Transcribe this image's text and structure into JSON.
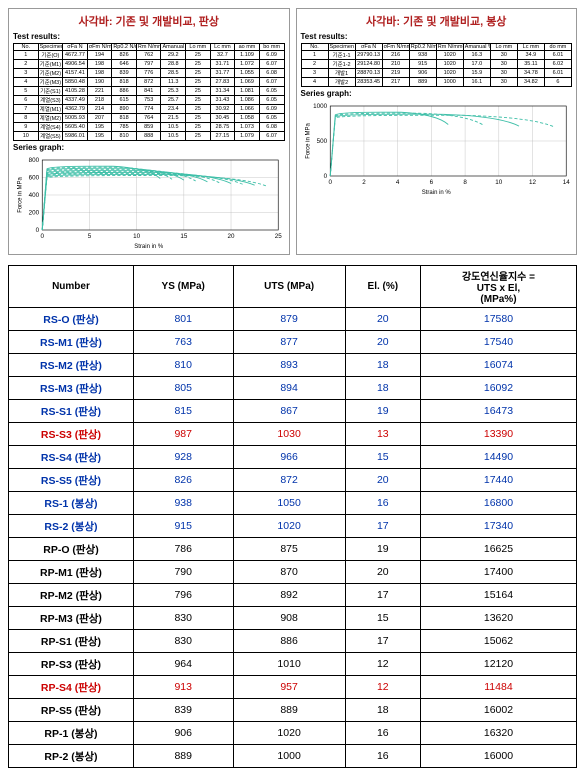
{
  "panels": {
    "left": {
      "title": "사각바: 기존 및 개발비교, 판상",
      "test_label": "Test results:",
      "series_label": "Series graph:",
      "mini_headers": [
        "No.",
        "Specimen ID",
        "σFa N",
        "σFm N/mm²",
        "Rp0.2 N/mm²",
        "Rm N/mm²",
        "Amanual %",
        "Lo mm",
        "Lc mm",
        "ao mm",
        "bo mm"
      ],
      "mini_rows": [
        [
          "1",
          "기준(O)",
          "4672.77",
          "194",
          "826",
          "762",
          "29.2",
          "25",
          "32.7",
          "1.109",
          "6.09"
        ],
        [
          "2",
          "기준(M1)",
          "4906.54",
          "198",
          "646",
          "797",
          "28.8",
          "25",
          "31.71",
          "1.072",
          "6.07"
        ],
        [
          "3",
          "기준(M2)",
          "4157.41",
          "198",
          "839",
          "776",
          "28.5",
          "25",
          "31.77",
          "1.055",
          "6.08"
        ],
        [
          "4",
          "기준(M3)",
          "5850.48",
          "190",
          "818",
          "872",
          "11.3",
          "25",
          "27.83",
          "1.069",
          "6.07"
        ],
        [
          "5",
          "기준(S1)",
          "4105.28",
          "221",
          "886",
          "841",
          "25.3",
          "25",
          "31.34",
          "1.081",
          "6.05"
        ],
        [
          "6",
          "계열(S3)",
          "4337.49",
          "218",
          "615",
          "753",
          "25.7",
          "25",
          "31.43",
          "1.086",
          "6.05"
        ],
        [
          "7",
          "계열(M1)",
          "4362.79",
          "214",
          "890",
          "774",
          "23.4",
          "25",
          "30.92",
          "1.066",
          "6.09"
        ],
        [
          "8",
          "계열(M2)",
          "5005.93",
          "207",
          "818",
          "764",
          "21.5",
          "25",
          "30.45",
          "1.058",
          "6.05"
        ],
        [
          "9",
          "계열(S4)",
          "5605.40",
          "195",
          "785",
          "859",
          "10.5",
          "25",
          "28.75",
          "1.073",
          "6.08"
        ],
        [
          "10",
          "계열(S5)",
          "5986.01",
          "195",
          "810",
          "888",
          "10.5",
          "25",
          "27.15",
          "1.079",
          "6.07"
        ]
      ],
      "chart": {
        "xlim": [
          0,
          25
        ],
        "ylim": [
          0,
          800
        ],
        "ytick_step": 200,
        "xtick_step": 5,
        "curves_color": "#3fbfa8",
        "grid_color": "#bbbbbb",
        "ylabel": "Force in MPa",
        "xlabel": "Strain in %"
      }
    },
    "right": {
      "title": "사각바: 기존 및 개발비교, 봉상",
      "test_label": "Test results:",
      "series_label": "Series graph:",
      "mini_headers": [
        "No.",
        "Specimen ID",
        "σFa N",
        "σFm N/mm²",
        "Rp0.2 N/mm²",
        "Rm N/mm²",
        "Amanual %",
        "Lo mm",
        "Lc mm",
        "do mm"
      ],
      "mini_rows": [
        [
          "1",
          "기준1-1",
          "29790.13",
          "216",
          "938",
          "1020",
          "16.3",
          "30",
          "34.9",
          "6.01"
        ],
        [
          "2",
          "기준1-2",
          "29124.80",
          "210",
          "915",
          "1020",
          "17.0",
          "30",
          "35.11",
          "6.02"
        ],
        [
          "3",
          "개발1",
          "28870.13",
          "219",
          "906",
          "1020",
          "15.9",
          "30",
          "34.78",
          "6.01"
        ],
        [
          "4",
          "개발2",
          "28353.45",
          "217",
          "889",
          "1000",
          "16.1",
          "30",
          "34.82",
          "6"
        ]
      ],
      "chart": {
        "xlim": [
          0,
          14
        ],
        "ylim": [
          0,
          1000
        ],
        "ytick_step": 500,
        "xtick_step": 2,
        "curves_color": "#3fbfa8",
        "grid_color": "#bbbbbb",
        "ylabel": "Force in MPa",
        "xlabel": "Strain in %"
      }
    }
  },
  "main_table": {
    "headers": [
      "Number",
      "YS (MPa)",
      "UTS (MPa)",
      "El. (%)",
      "강도연신율지수 =\nUTS x El,\n(MPa%)"
    ],
    "rows": [
      {
        "label": "RS-O (판상)",
        "ys": "801",
        "uts": "879",
        "el": "20",
        "idx": "17580",
        "group": "rs"
      },
      {
        "label": "RS-M1 (판상)",
        "ys": "763",
        "uts": "877",
        "el": "20",
        "idx": "17540",
        "group": "rs"
      },
      {
        "label": "RS-M2 (판상)",
        "ys": "810",
        "uts": "893",
        "el": "18",
        "idx": "16074",
        "group": "rs"
      },
      {
        "label": "RS-M3 (판상)",
        "ys": "805",
        "uts": "894",
        "el": "18",
        "idx": "16092",
        "group": "rs"
      },
      {
        "label": "RS-S1 (판상)",
        "ys": "815",
        "uts": "867",
        "el": "19",
        "idx": "16473",
        "group": "rs"
      },
      {
        "label": "RS-S3 (판상)",
        "ys": "987",
        "uts": "1030",
        "el": "13",
        "idx": "13390",
        "group": "rs",
        "red": true
      },
      {
        "label": "RS-S4 (판상)",
        "ys": "928",
        "uts": "966",
        "el": "15",
        "idx": "14490",
        "group": "rs"
      },
      {
        "label": "RS-S5 (판상)",
        "ys": "826",
        "uts": "872",
        "el": "20",
        "idx": "17440",
        "group": "rs"
      },
      {
        "label": "RS-1 (봉상)",
        "ys": "938",
        "uts": "1050",
        "el": "16",
        "idx": "16800",
        "group": "rs"
      },
      {
        "label": "RS-2 (봉상)",
        "ys": "915",
        "uts": "1020",
        "el": "17",
        "idx": "17340",
        "group": "rs"
      },
      {
        "label": "RP-O (판상)",
        "ys": "786",
        "uts": "875",
        "el": "19",
        "idx": "16625",
        "group": "rp"
      },
      {
        "label": "RP-M1 (판상)",
        "ys": "790",
        "uts": "870",
        "el": "20",
        "idx": "17400",
        "group": "rp"
      },
      {
        "label": "RP-M2 (판상)",
        "ys": "796",
        "uts": "892",
        "el": "17",
        "idx": "15164",
        "group": "rp"
      },
      {
        "label": "RP-M3 (판상)",
        "ys": "830",
        "uts": "908",
        "el": "15",
        "idx": "13620",
        "group": "rp"
      },
      {
        "label": "RP-S1 (판상)",
        "ys": "830",
        "uts": "886",
        "el": "17",
        "idx": "15062",
        "group": "rp"
      },
      {
        "label": "RP-S3 (판상)",
        "ys": "964",
        "uts": "1010",
        "el": "12",
        "idx": "12120",
        "group": "rp"
      },
      {
        "label": "RP-S4 (판상)",
        "ys": "913",
        "uts": "957",
        "el": "12",
        "idx": "11484",
        "group": "rp",
        "red": true
      },
      {
        "label": "RP-S5 (판상)",
        "ys": "839",
        "uts": "889",
        "el": "18",
        "idx": "16002",
        "group": "rp"
      },
      {
        "label": "RP-1 (봉상)",
        "ys": "906",
        "uts": "1020",
        "el": "16",
        "idx": "16320",
        "group": "rp"
      },
      {
        "label": "RP-2 (봉상)",
        "ys": "889",
        "uts": "1000",
        "el": "16",
        "idx": "16000",
        "group": "rp"
      }
    ]
  }
}
